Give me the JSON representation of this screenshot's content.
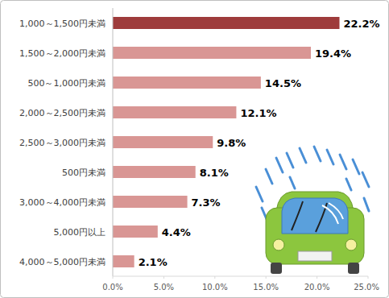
{
  "chart_data": {
    "type": "bar",
    "orientation": "horizontal",
    "categories": [
      "1,000～1,500円未満",
      "1,500～2,000円未満",
      "500～1,000円未満",
      "2,000～2,500円未満",
      "2,500～3,000円未満",
      "500円未満",
      "3,000～4,000円未満",
      "5,000円以上",
      "4,000～5,000円未満"
    ],
    "values": [
      22.2,
      19.4,
      14.5,
      12.1,
      9.8,
      8.1,
      7.3,
      4.4,
      2.1
    ],
    "value_labels": [
      "22.2%",
      "19.4%",
      "14.5%",
      "12.1%",
      "9.8%",
      "8.1%",
      "7.3%",
      "4.4%",
      "2.1%"
    ],
    "colors": [
      "#9e3b3b",
      "#d99694",
      "#d99694",
      "#d99694",
      "#d99694",
      "#d99694",
      "#d99694",
      "#d99694",
      "#d99694"
    ],
    "xlim": [
      0,
      25
    ],
    "xticks": [
      {
        "value": 0,
        "label": "0.0%"
      },
      {
        "value": 5,
        "label": "5.0%"
      },
      {
        "value": 10,
        "label": "10.0%"
      },
      {
        "value": 15,
        "label": "15.0%"
      },
      {
        "value": 20,
        "label": "20.0%"
      },
      {
        "value": 25,
        "label": "25.0%"
      }
    ],
    "grid": false,
    "data_labels": true
  }
}
